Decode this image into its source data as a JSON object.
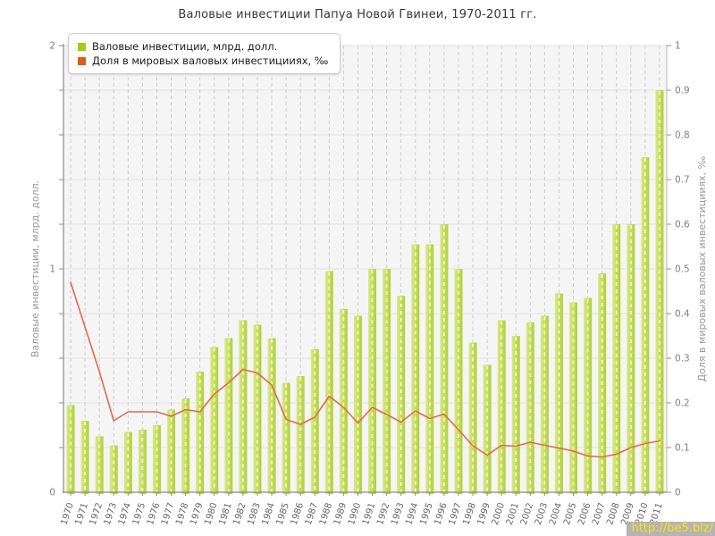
{
  "page": {
    "watermark": "http://be5.biz/"
  },
  "chart_data": {
    "type": "bar",
    "title": "Валовые инвестиции Папуа Новой Гвинеи, 1970-2011 гг.",
    "categories": [
      "1970",
      "1971",
      "1972",
      "1973",
      "1974",
      "1975",
      "1976",
      "1977",
      "1978",
      "1979",
      "1980",
      "1981",
      "1982",
      "1983",
      "1984",
      "1985",
      "1986",
      "1987",
      "1988",
      "1989",
      "1990",
      "1991",
      "1992",
      "1993",
      "1994",
      "1995",
      "1996",
      "1997",
      "1998",
      "1999",
      "2000",
      "2001",
      "2002",
      "2003",
      "2004",
      "2005",
      "2006",
      "2007",
      "2008",
      "2009",
      "2010",
      "2011"
    ],
    "series": [
      {
        "name": "Валовые инвестиции, млрд. долл.",
        "type": "bar",
        "axis": "left",
        "color": "#c3dc55",
        "legend_color": "#a6cb0f",
        "values": [
          0.39,
          0.32,
          0.25,
          0.21,
          0.27,
          0.28,
          0.3,
          0.37,
          0.42,
          0.54,
          0.65,
          0.69,
          0.77,
          0.75,
          0.69,
          0.49,
          0.52,
          0.64,
          0.99,
          0.82,
          0.79,
          1.0,
          1.0,
          0.88,
          1.11,
          1.11,
          1.2,
          1.0,
          0.67,
          0.57,
          0.77,
          0.7,
          0.76,
          0.79,
          0.89,
          0.85,
          0.87,
          0.98,
          1.2,
          1.2,
          1.5,
          1.8
        ]
      },
      {
        "name": "Доля в мировых валовых инвестицииях, ‰",
        "type": "line",
        "axis": "right",
        "color": "#e06b4c",
        "legend_color": "#dd5a17",
        "values": [
          0.47,
          0.37,
          0.27,
          0.16,
          0.18,
          0.18,
          0.18,
          0.17,
          0.185,
          0.18,
          0.22,
          0.245,
          0.275,
          0.267,
          0.24,
          0.163,
          0.152,
          0.168,
          0.215,
          0.19,
          0.155,
          0.19,
          0.174,
          0.157,
          0.182,
          0.165,
          0.175,
          0.14,
          0.104,
          0.083,
          0.105,
          0.103,
          0.112,
          0.105,
          0.099,
          0.092,
          0.081,
          0.079,
          0.085,
          0.1,
          0.109,
          0.115
        ]
      }
    ],
    "axes": {
      "left": {
        "label": "Валовые инвестиции, млрд. долл.",
        "min": 0,
        "max": 2,
        "tick_labels": [
          "0",
          "1",
          "2"
        ]
      },
      "right": {
        "label": "Доля в мировых валовых инвестицииях, ‰",
        "min": 0,
        "max": 1,
        "tick_labels": [
          "0",
          "0.1",
          "0.2",
          "0.3",
          "0.4",
          "0.5",
          "0.6",
          "0.7",
          "0.8",
          "0.9",
          "1"
        ]
      }
    },
    "legend_position": "top-left",
    "grid": true
  }
}
